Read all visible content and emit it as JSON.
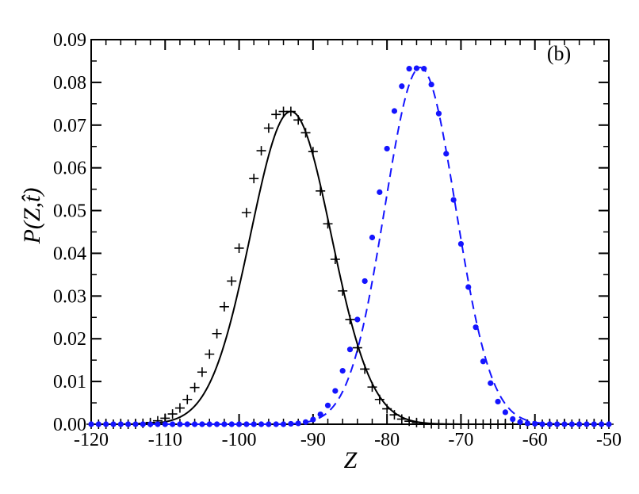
{
  "chart_data": {
    "type": "line",
    "panel_label": "(b)",
    "xlabel": "Z",
    "ylabel": "P(Z,t̂)",
    "xlim": [
      -120,
      -50
    ],
    "ylim": [
      0,
      0.09
    ],
    "x_ticks": [
      -120,
      -110,
      -100,
      -90,
      -80,
      -70,
      -60,
      -50
    ],
    "x_tick_labels": [
      "-120",
      "-110",
      "-100",
      "-90",
      "-80",
      "-70",
      "-60",
      "-50"
    ],
    "y_ticks": [
      0,
      0.01,
      0.02,
      0.03,
      0.04,
      0.05,
      0.06,
      0.07,
      0.08,
      0.09
    ],
    "y_tick_labels": [
      "0.00",
      "0.01",
      "0.02",
      "0.03",
      "0.04",
      "0.05",
      "0.06",
      "0.07",
      "0.08",
      "0.09"
    ],
    "grid": false,
    "series": [
      {
        "style": "solid",
        "color": "#000000",
        "kind": "curve",
        "gaussian": {
          "peak": 0.0732,
          "mean": -93.0,
          "sd": 5.45
        }
      },
      {
        "style": "dashed",
        "color": "#1414ff",
        "kind": "curve",
        "gaussian": {
          "peak": 0.0835,
          "mean": -75.5,
          "sd": 4.8
        }
      },
      {
        "style": "markers",
        "marker": "plus",
        "color": "#000000",
        "x": [
          -120,
          -119,
          -118,
          -117,
          -116,
          -115,
          -114,
          -113,
          -112,
          -111,
          -110,
          -109,
          -108,
          -107,
          -106,
          -105,
          -104,
          -103,
          -102,
          -101,
          -100,
          -99,
          -98,
          -97,
          -96,
          -95,
          -94,
          -93,
          -92,
          -91,
          -90,
          -89,
          -88,
          -87,
          -86,
          -85,
          -84,
          -83,
          -82,
          -81,
          -80,
          -79,
          -78,
          -77,
          -76,
          -75,
          -74,
          -73,
          -72,
          -71,
          -70,
          -69,
          -68,
          -67,
          -66,
          -65,
          -64,
          -63,
          -62,
          -61,
          -60,
          -59,
          -58,
          -57,
          -56,
          -55,
          -54,
          -53,
          -52,
          -51,
          -50
        ],
        "y": [
          0.0,
          0.0,
          0.0,
          0.0,
          0.0,
          0.0,
          0.0,
          0.0002,
          0.0004,
          0.0008,
          0.0014,
          0.0024,
          0.0038,
          0.0058,
          0.0086,
          0.0122,
          0.0164,
          0.0212,
          0.0275,
          0.0335,
          0.0412,
          0.0495,
          0.0575,
          0.064,
          0.0693,
          0.0725,
          0.0732,
          0.0732,
          0.0712,
          0.0682,
          0.0638,
          0.0546,
          0.0469,
          0.0386,
          0.0312,
          0.0245,
          0.0179,
          0.0129,
          0.0087,
          0.0058,
          0.0036,
          0.0022,
          0.0012,
          0.0007,
          0.0004,
          0.0002,
          0.0001,
          0.0,
          0.0,
          0.0,
          0.0,
          0.0,
          0.0,
          0.0,
          0.0,
          0.0,
          0.0,
          0.0,
          0.0,
          0.0,
          0.0,
          0.0,
          0.0,
          0.0,
          0.0,
          0.0,
          0.0,
          0.0,
          0.0,
          0.0,
          0.0
        ]
      },
      {
        "style": "markers",
        "marker": "circle",
        "color": "#1414ff",
        "x": [
          -120,
          -119,
          -118,
          -117,
          -116,
          -115,
          -114,
          -113,
          -112,
          -111,
          -110,
          -109,
          -108,
          -107,
          -106,
          -105,
          -104,
          -103,
          -102,
          -101,
          -100,
          -99,
          -98,
          -97,
          -96,
          -95,
          -94,
          -93,
          -92,
          -91,
          -90,
          -89,
          -88,
          -87,
          -86,
          -85,
          -84,
          -83,
          -82,
          -81,
          -80,
          -79,
          -78,
          -77,
          -76,
          -75,
          -74,
          -73,
          -72,
          -71,
          -70,
          -69,
          -68,
          -67,
          -66,
          -65,
          -64,
          -63,
          -62,
          -61,
          -60,
          -59,
          -58,
          -57,
          -56,
          -55,
          -54,
          -53,
          -52,
          -51,
          -50
        ],
        "y": [
          0.0,
          0.0,
          0.0,
          0.0,
          0.0,
          0.0,
          0.0,
          0.0,
          0.0,
          0.0,
          0.0,
          0.0,
          0.0,
          0.0,
          0.0,
          0.0,
          0.0,
          0.0,
          0.0,
          0.0,
          0.0,
          0.0,
          0.0,
          0.0,
          0.0,
          0.0,
          0.0,
          0.0001,
          0.0002,
          0.0005,
          0.0011,
          0.0023,
          0.0044,
          0.0078,
          0.0125,
          0.0175,
          0.0245,
          0.0335,
          0.0437,
          0.0543,
          0.0645,
          0.0733,
          0.0791,
          0.0832,
          0.0833,
          0.0832,
          0.0795,
          0.0727,
          0.0633,
          0.0525,
          0.0422,
          0.0321,
          0.0227,
          0.0147,
          0.0096,
          0.0053,
          0.0028,
          0.0012,
          0.0005,
          0.0002,
          0.0001,
          0.0,
          0.0,
          0.0,
          0.0,
          0.0,
          0.0,
          0.0,
          0.0,
          0.0,
          0.0
        ]
      }
    ]
  }
}
